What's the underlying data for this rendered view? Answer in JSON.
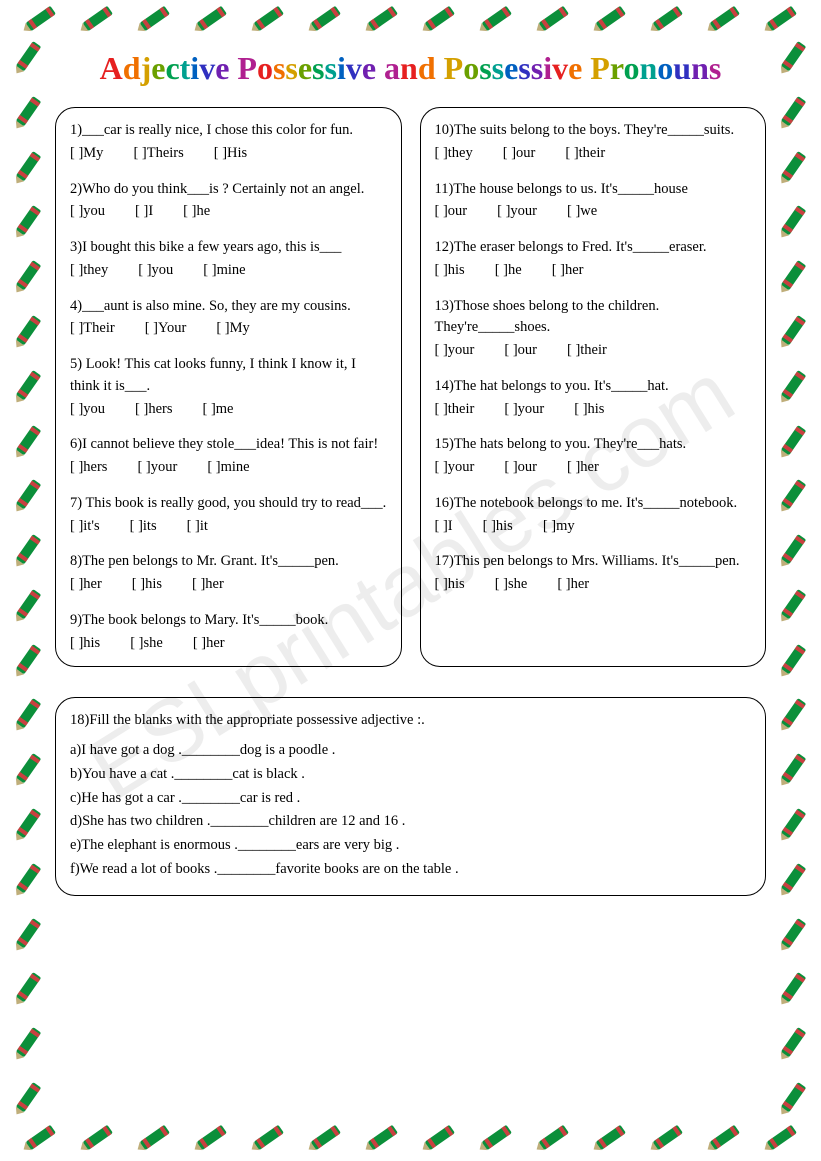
{
  "watermark": "ESLprintables.com",
  "title_text": "Adjective Possessive and Possessive Pronouns",
  "title_colors": [
    "#e62020",
    "#f07000",
    "#d4a000",
    "#6aa000",
    "#00a050",
    "#00a090",
    "#0060c0",
    "#3030c0",
    "#7020b0",
    "#b02090"
  ],
  "crayon_body": "#0b8f3a",
  "crayon_band": "#c94040",
  "crayon_tip": "#bfae7a",
  "left": [
    {
      "n": "1",
      "text": "___car is really nice, I chose this color for fun.",
      "opts": [
        "My",
        "Theirs",
        "His"
      ]
    },
    {
      "n": "2",
      "text": "Who do you think___is ? Certainly not an angel.",
      "opts": [
        "you",
        "I",
        "he"
      ]
    },
    {
      "n": "3",
      "text": "I bought this bike a few years ago, this is___",
      "opts": [
        "they",
        "you",
        "mine"
      ]
    },
    {
      "n": "4",
      "text": "___aunt is also mine. So, they are my cousins.",
      "opts": [
        "Their",
        "Your",
        "My"
      ]
    },
    {
      "n": "5",
      "text": " Look! This cat looks funny, I think I know it, I think it is___.",
      "opts": [
        "you",
        "hers",
        "me"
      ]
    },
    {
      "n": "6",
      "text": "I cannot believe they stole___idea! This is not fair!",
      "opts": [
        "hers",
        "your",
        "mine"
      ]
    },
    {
      "n": "7",
      "text": " This book is really good, you should try to read___.",
      "opts": [
        "it's",
        "its",
        "it"
      ]
    },
    {
      "n": "8",
      "text": "The pen belongs to Mr. Grant. It's_____pen.",
      "opts": [
        "her",
        "his",
        "her"
      ]
    },
    {
      "n": "9",
      "text": "The book belongs to Mary. It's_____book.",
      "opts": [
        "his",
        "she",
        "her"
      ]
    }
  ],
  "right": [
    {
      "n": "10",
      "text": "The suits belong to the boys. They're_____suits.",
      "opts": [
        "they",
        "our",
        "their"
      ]
    },
    {
      "n": "11",
      "text": "The house belongs to us. It's_____house",
      "opts": [
        "our",
        "your",
        "we"
      ]
    },
    {
      "n": "12",
      "text": "The eraser belongs to Fred. It's_____eraser.",
      "opts": [
        "his",
        "he",
        "her"
      ]
    },
    {
      "n": "13",
      "text": "Those shoes belong to the children. They're_____shoes.",
      "opts": [
        "your",
        "our",
        "their"
      ]
    },
    {
      "n": "14",
      "text": "The hat belongs to you. It's_____hat.",
      "opts": [
        "their",
        "your",
        "his"
      ]
    },
    {
      "n": "15",
      "text": "The hats belong to you. They're___hats.",
      "opts": [
        "your",
        "our",
        "her"
      ]
    },
    {
      "n": "16",
      "text": "The notebook belongs to me. It's_____notebook.",
      "opts": [
        "I",
        "his",
        "my"
      ]
    },
    {
      "n": "17",
      "text": "This pen belongs to Mrs. Williams. It's_____pen.",
      "opts": [
        "his",
        "she",
        "her"
      ]
    }
  ],
  "fill": {
    "n": "18",
    "prompt": "Fill the blanks with the appropriate possessive adjective :.",
    "items": [
      "a)I have got a dog .________dog is a poodle .",
      "b)You have a cat .________cat is black .",
      "c)He has got a car .________car is red .",
      "d)She has two children .________children are 12 and 16 .",
      "e)The elephant is enormous .________ears are very big .",
      "f)We read a lot of books .________favorite books are on the table ."
    ]
  },
  "border": {
    "count_top": 14,
    "count_side": 20
  }
}
